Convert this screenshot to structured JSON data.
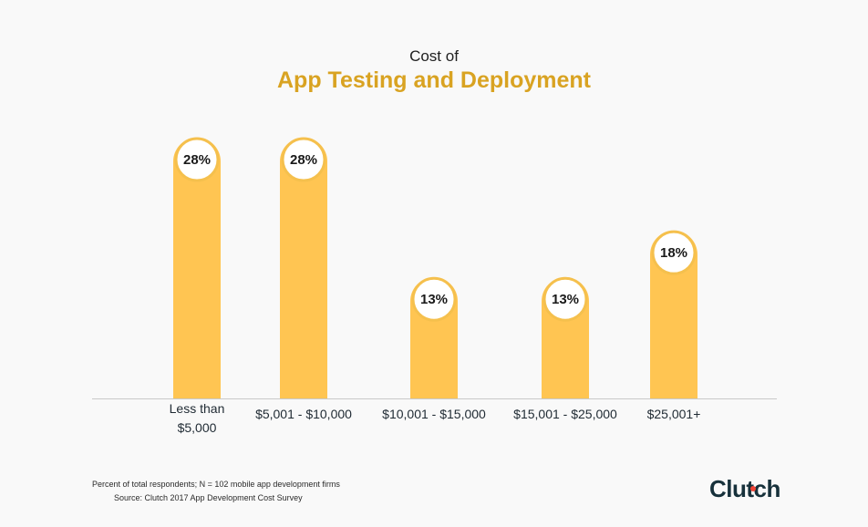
{
  "header": {
    "title_prefix": "Cost of",
    "title": "App Testing and Deployment"
  },
  "colors": {
    "accent": "#d9a322",
    "bar": "#ffc552",
    "bubble_border": "#f5c04d",
    "axis": "#c9c9c9",
    "brand": "#17313b",
    "brand_dot": "#ef4335"
  },
  "chart_data": {
    "type": "bar",
    "title": "App Testing and Deployment",
    "categories": [
      [
        "Less than",
        "$5,000"
      ],
      [
        "$5,001 - $10,000"
      ],
      [
        "$10,001 - $15,000"
      ],
      [
        "$15,001 - $25,000"
      ],
      [
        "$25,001+"
      ]
    ],
    "values": [
      28,
      28,
      13,
      13,
      18
    ],
    "value_labels": [
      "28%",
      "28%",
      "13%",
      "13%",
      "18%"
    ],
    "ylim": [
      0,
      30
    ],
    "grid": false
  },
  "footer": {
    "note": "Percent of total respondents; N = 102 mobile app development firms",
    "source": "Source: Clutch 2017 App Development Cost Survey",
    "logo_text": "Clutch"
  }
}
